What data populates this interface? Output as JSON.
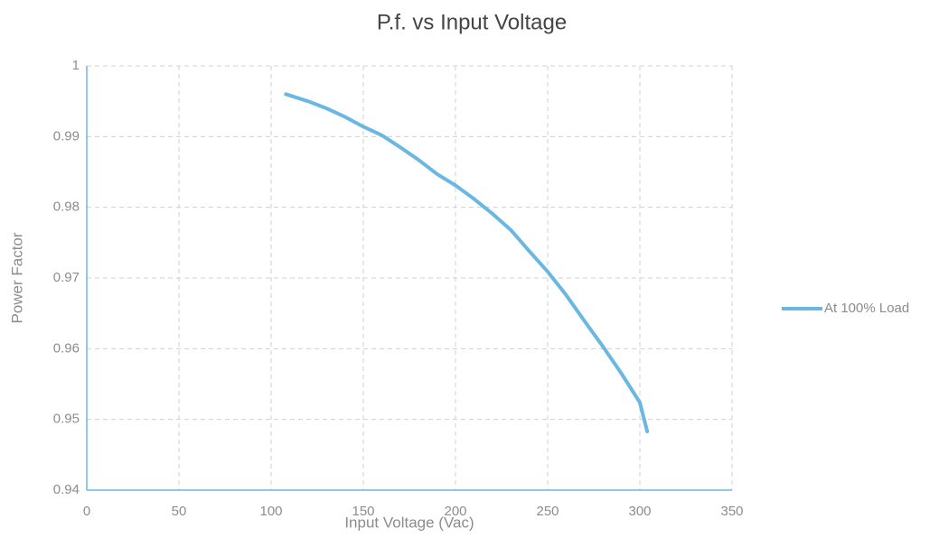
{
  "chart_data": {
    "type": "line",
    "title": "P.f. vs Input Voltage",
    "x_label": "Input Voltage (Vac)",
    "y_label": "Power Factor",
    "x": [
      108,
      120,
      130,
      140,
      150,
      160,
      170,
      180,
      190,
      200,
      210,
      220,
      230,
      240,
      250,
      260,
      270,
      280,
      290,
      300,
      304
    ],
    "series": [
      {
        "name": "At 100% Load",
        "color": "#6ab8e2",
        "values": [
          0.996,
          0.995,
          0.994,
          0.9928,
          0.9914,
          0.9902,
          0.9885,
          0.9867,
          0.9847,
          0.9831,
          0.9812,
          0.9791,
          0.9768,
          0.9738,
          0.9709,
          0.9676,
          0.9639,
          0.9603,
          0.9565,
          0.9524,
          0.9483
        ]
      }
    ],
    "xlim": [
      0,
      350
    ],
    "xticks": [
      0,
      50,
      100,
      150,
      200,
      250,
      300,
      350
    ],
    "ylim": [
      0.94,
      1
    ],
    "yticks": [
      0.94,
      0.95,
      0.96,
      0.97,
      0.98,
      0.99,
      1
    ],
    "grid": true,
    "legend": "right"
  }
}
